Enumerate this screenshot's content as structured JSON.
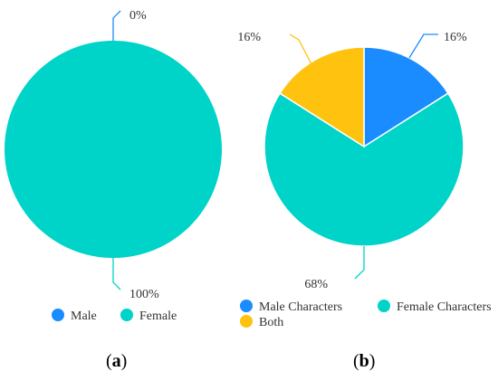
{
  "colors": {
    "blue": "#1a8cff",
    "teal": "#00d3c8",
    "gold": "#ffc20e"
  },
  "chart_data": [
    {
      "type": "pie",
      "panel": "a",
      "slices": [
        {
          "name": "Male",
          "value": 0,
          "label": "0%",
          "color": "#1a8cff"
        },
        {
          "name": "Female",
          "value": 100,
          "label": "100%",
          "color": "#00d3c8"
        }
      ],
      "legend": {
        "placement": "bottom",
        "entries": [
          "Male",
          "Female"
        ]
      }
    },
    {
      "type": "pie",
      "panel": "b",
      "slices": [
        {
          "name": "Male Characters",
          "value": 16,
          "label": "16%",
          "color": "#1a8cff"
        },
        {
          "name": "Female Characters",
          "value": 68,
          "label": "68%",
          "color": "#00d3c8"
        },
        {
          "name": "Both",
          "value": 16,
          "label": "16%",
          "color": "#ffc20e"
        }
      ],
      "legend": {
        "placement": "bottom",
        "entries": [
          "Male Characters",
          "Female Characters",
          "Both"
        ]
      }
    }
  ],
  "panel_labels": {
    "a": "a",
    "b": "b"
  }
}
